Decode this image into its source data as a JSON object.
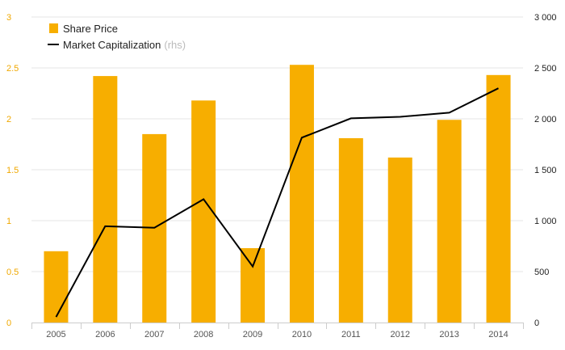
{
  "colors": {
    "bar": "#f7ae00",
    "line": "#000000",
    "grid": "#e6e6e6",
    "left_axis_text": "#f0a800",
    "right_axis_text": "#222222"
  },
  "chart_data": {
    "type": "bar",
    "categories": [
      "2005",
      "2006",
      "2007",
      "2008",
      "2009",
      "2010",
      "2011",
      "2012",
      "2013",
      "2014"
    ],
    "series": [
      {
        "name": "Share Price",
        "type": "bar",
        "axis": "left",
        "values": [
          0.7,
          2.42,
          1.85,
          2.18,
          0.73,
          2.53,
          1.81,
          1.62,
          1.99,
          2.43
        ]
      },
      {
        "name": "Market Capitalization",
        "type": "line",
        "axis": "right",
        "values": [
          55,
          945,
          930,
          1210,
          550,
          1815,
          2005,
          2020,
          2060,
          2300
        ]
      }
    ],
    "left_axis": {
      "min": 0,
      "max": 3,
      "ticks": [
        0,
        0.5,
        1,
        1.5,
        2,
        2.5,
        3
      ],
      "tick_labels": [
        "0",
        "0.5",
        "1",
        "1.5",
        "2",
        "2.5",
        "3"
      ]
    },
    "right_axis": {
      "min": 0,
      "max": 3000,
      "ticks": [
        0,
        500,
        1000,
        1500,
        2000,
        2500,
        3000
      ],
      "tick_labels": [
        "0",
        "500",
        "1 000",
        "1 500",
        "2 000",
        "2 500",
        "3 000"
      ]
    },
    "legend": {
      "position": "top-left",
      "bar_label": "Share Price",
      "line_label": "Market Capitalization",
      "line_suffix": "(rhs)"
    },
    "grid": true
  }
}
